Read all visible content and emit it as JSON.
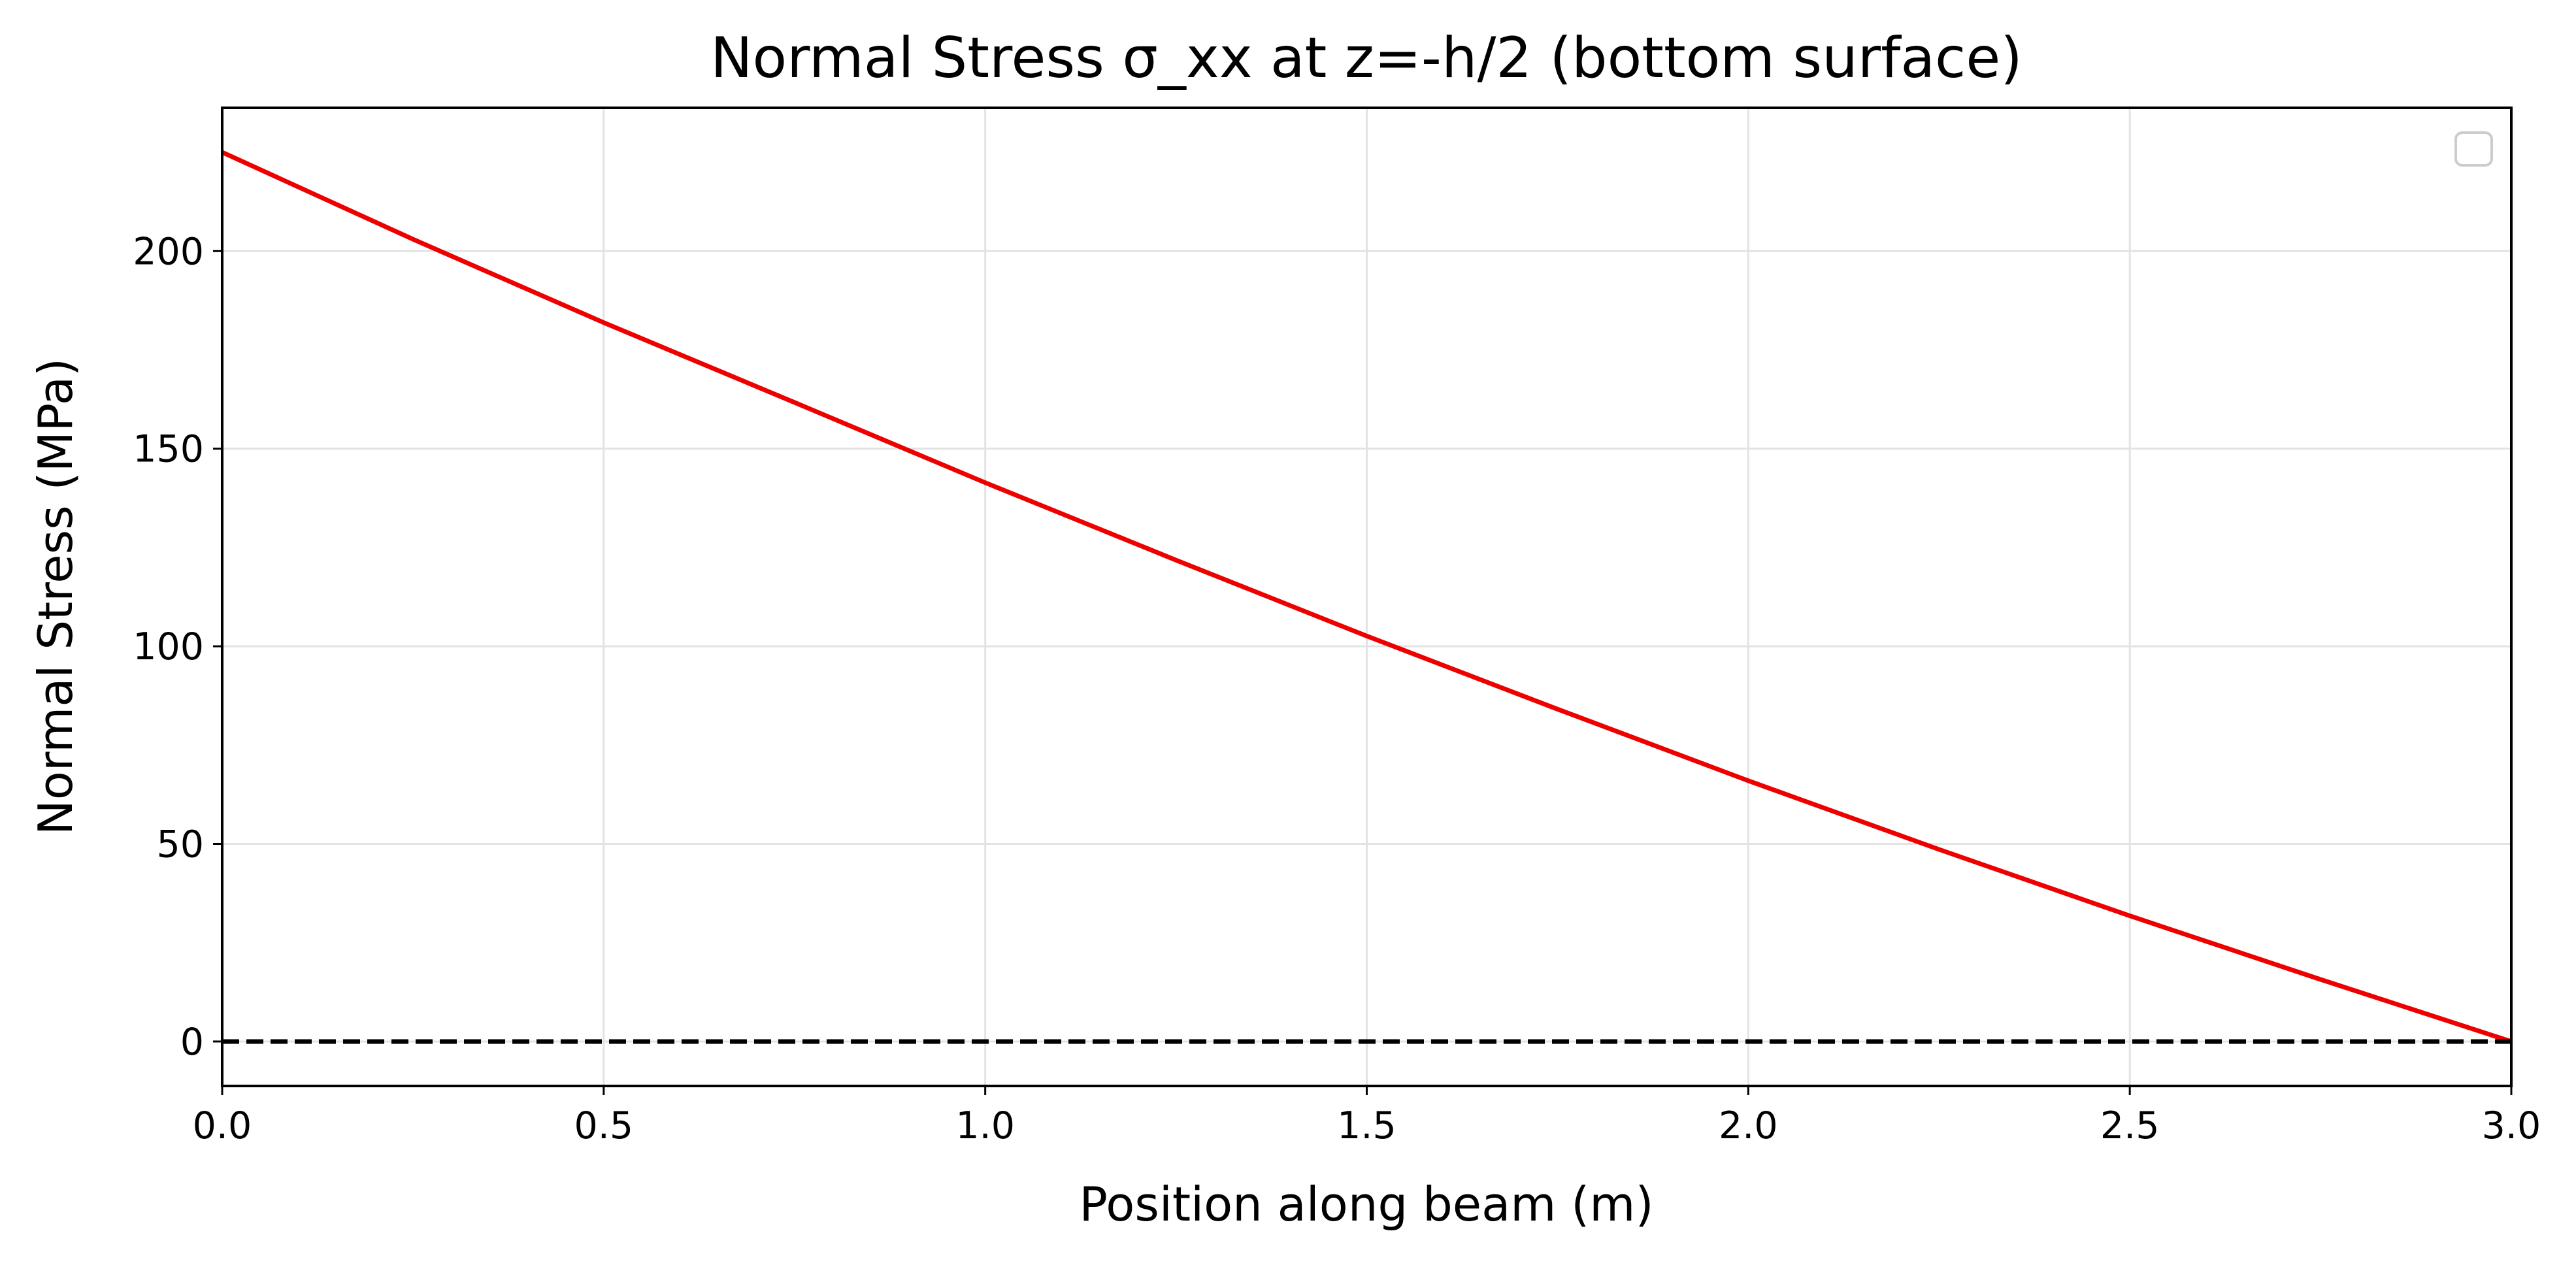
{
  "chart_data": {
    "type": "line",
    "title": "Normal Stress σ_xx at z=-h/2 (bottom surface)",
    "xlabel": "Position along beam (m)",
    "ylabel": "Normal Stress (MPa)",
    "xlim": [
      0.0,
      3.0
    ],
    "ylim": [
      -11.25,
      236.25
    ],
    "xticks": [
      0.0,
      0.5,
      1.0,
      1.5,
      2.0,
      2.5,
      3.0
    ],
    "xtick_labels": [
      "0.0",
      "0.5",
      "1.0",
      "1.5",
      "2.0",
      "2.5",
      "3.0"
    ],
    "yticks": [
      0,
      50,
      100,
      150,
      200
    ],
    "ytick_labels": [
      "0",
      "50",
      "100",
      "150",
      "200"
    ],
    "grid": true,
    "legend": {
      "placement": "upper right",
      "entries": []
    },
    "series": [
      {
        "color": "#ee0000",
        "style": "solid",
        "x": [
          0.0,
          0.25,
          0.5,
          0.75,
          1.0,
          1.25,
          1.5,
          1.75,
          2.0,
          2.25,
          2.5,
          2.75,
          3.0
        ],
        "y": [
          225.0,
          203.0,
          181.9,
          161.7,
          141.4,
          121.8,
          102.6,
          84.1,
          66.0,
          48.6,
          31.8,
          15.7,
          0.0
        ]
      },
      {
        "color": "#000000",
        "style": "dashed",
        "x": [
          0.0,
          3.0
        ],
        "y": [
          0.0,
          0.0
        ]
      }
    ]
  }
}
